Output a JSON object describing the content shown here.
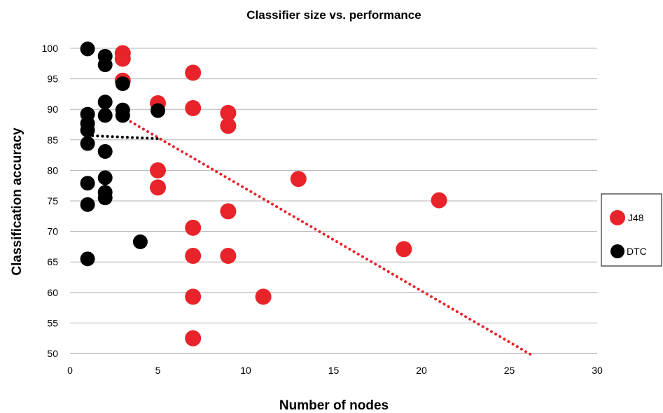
{
  "chart_data": {
    "type": "scatter",
    "title": "Classifier size vs. performance",
    "xlabel": "Number of nodes",
    "ylabel": "Classification accuracy",
    "xlim": [
      0,
      30
    ],
    "ylim": [
      50,
      100
    ],
    "x_ticks": [
      "0",
      "5",
      "10",
      "15",
      "20",
      "25",
      "30"
    ],
    "y_ticks": [
      "50",
      "55",
      "60",
      "65",
      "70",
      "75",
      "80",
      "85",
      "90",
      "95",
      "100"
    ],
    "grid": "horizontal",
    "legend_position": "right",
    "series": [
      {
        "name": "J48",
        "color": "#e8232a",
        "points": [
          [
            3,
            99.2
          ],
          [
            3,
            98.3
          ],
          [
            3,
            94.7
          ],
          [
            5,
            91
          ],
          [
            5,
            80
          ],
          [
            5,
            77.2
          ],
          [
            7,
            96
          ],
          [
            7,
            90.2
          ],
          [
            7,
            70.6
          ],
          [
            7,
            66
          ],
          [
            7,
            59.3
          ],
          [
            7,
            52.5
          ],
          [
            9,
            89.4
          ],
          [
            9,
            87.3
          ],
          [
            9,
            73.3
          ],
          [
            9,
            66
          ],
          [
            11,
            59.3
          ],
          [
            13,
            78.6
          ],
          [
            19,
            67.1
          ],
          [
            21,
            75.1
          ]
        ],
        "trendline": {
          "style": "dotted",
          "x": [
            3.2,
            26.3
          ],
          "y": [
            88.4,
            49.7
          ]
        }
      },
      {
        "name": "DTC",
        "color": "#000000",
        "points": [
          [
            1,
            99.9
          ],
          [
            1,
            89.2
          ],
          [
            1,
            87.7
          ],
          [
            1,
            86.6
          ],
          [
            1,
            84.4
          ],
          [
            1,
            77.9
          ],
          [
            1,
            74.4
          ],
          [
            1,
            65.5
          ],
          [
            2,
            98.7
          ],
          [
            2,
            97.3
          ],
          [
            2,
            91.2
          ],
          [
            2,
            89
          ],
          [
            2,
            83.1
          ],
          [
            2,
            78.8
          ],
          [
            2,
            76.4
          ],
          [
            2,
            75.5
          ],
          [
            3,
            94.2
          ],
          [
            3,
            89.9
          ],
          [
            3,
            89
          ],
          [
            4,
            68.3
          ],
          [
            5,
            89.8
          ]
        ],
        "trendline": {
          "style": "dotted",
          "x": [
            1,
            5
          ],
          "y": [
            85.7,
            85.2
          ]
        }
      }
    ]
  }
}
